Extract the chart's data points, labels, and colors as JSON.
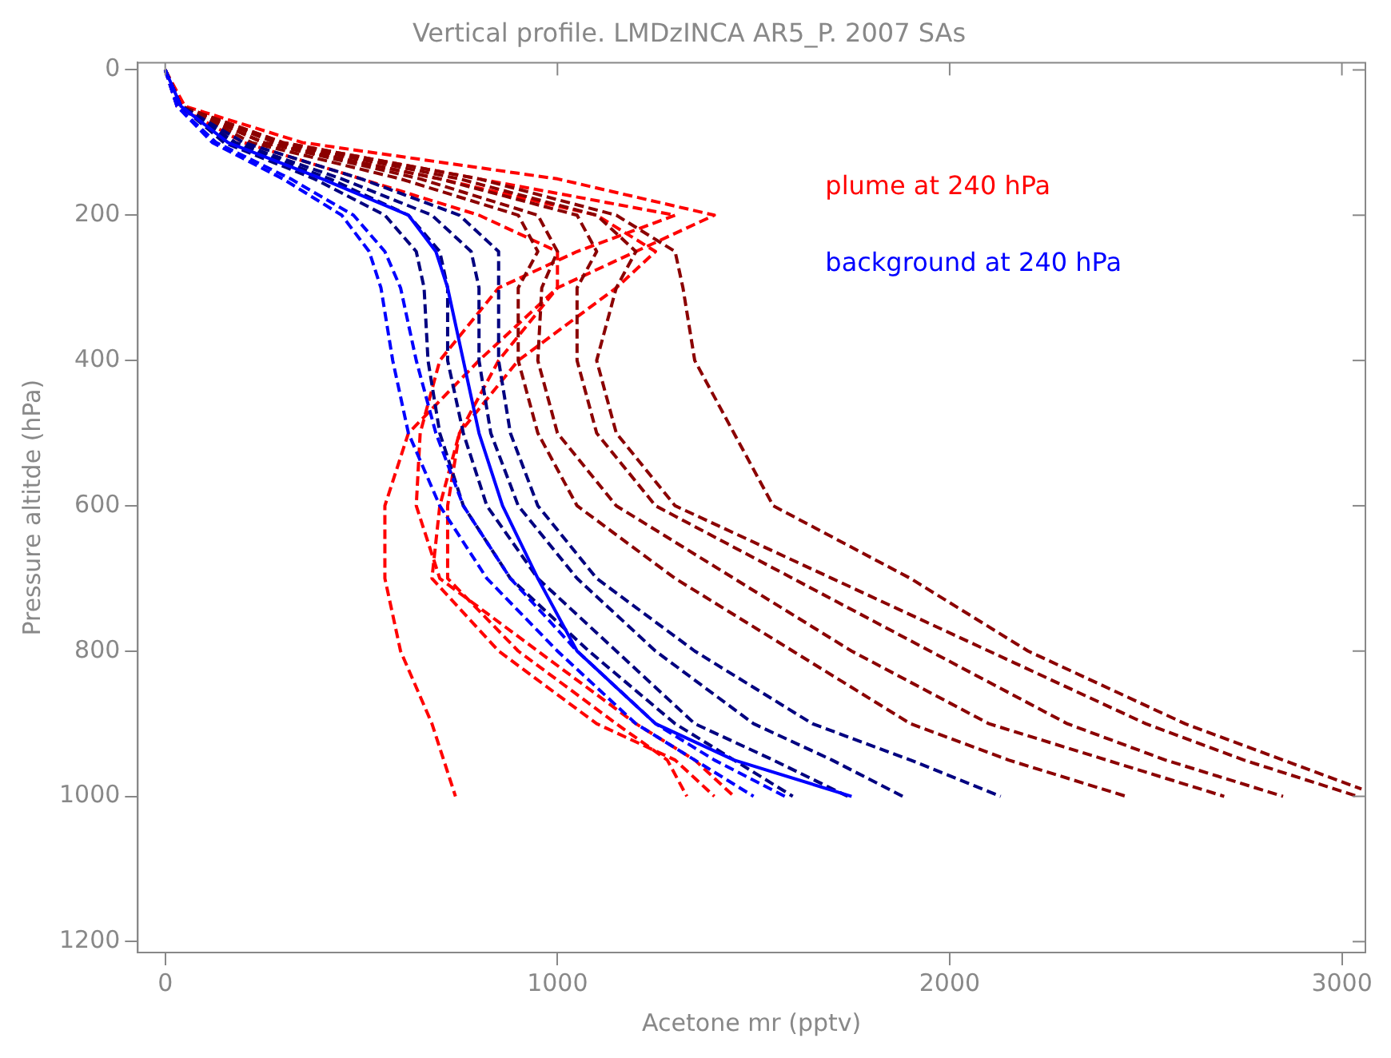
{
  "chart_data": {
    "type": "line",
    "title": "Vertical profile. LMDzINCA AR5_P. 2007 SAs",
    "xlabel": "Acetone mr (pptv)",
    "ylabel": "Pressure altitde (hPa)",
    "xlim": [
      -70,
      3060
    ],
    "xticks": [
      0,
      1000,
      2000,
      3000
    ],
    "ylim": [
      1215,
      -10
    ],
    "yticks": [
      0,
      200,
      400,
      600,
      800,
      1000,
      1200
    ],
    "grid": false,
    "legend": "top right",
    "line_style": "dashed",
    "marker": "none",
    "series": [
      {
        "name": "plume at 240 hPa",
        "color": "#ff0000",
        "x": [
          0,
          30,
          200,
          500,
          800,
          1000,
          1000,
          800,
          620,
          560,
          560,
          600,
          680,
          710,
          740
        ],
        "values": [
          0,
          50,
          100,
          150,
          200,
          250,
          300,
          400,
          500,
          600,
          700,
          800,
          900,
          950,
          1000
        ]
      },
      {
        "color": "#ff0000",
        "x": [
          0,
          40,
          250,
          700,
          1100,
          1250,
          1150,
          900,
          750,
          720,
          720,
          900,
          1150,
          1280,
          1330
        ],
        "values": [
          0,
          50,
          100,
          150,
          200,
          250,
          300,
          400,
          500,
          600,
          700,
          800,
          900,
          950,
          1000
        ]
      },
      {
        "color": "#ff0000",
        "x": [
          0,
          40,
          300,
          800,
          1300,
          1050,
          850,
          700,
          650,
          640,
          700,
          950,
          1200,
          1350,
          1450
        ],
        "values": [
          0,
          50,
          100,
          150,
          200,
          250,
          300,
          400,
          500,
          600,
          700,
          800,
          900,
          950,
          1000
        ]
      },
      {
        "color": "#ff0000",
        "x": [
          0,
          50,
          350,
          1000,
          1400,
          1200,
          1000,
          850,
          750,
          700,
          680,
          850,
          1100,
          1300,
          1400
        ],
        "values": [
          0,
          50,
          100,
          150,
          200,
          250,
          300,
          400,
          500,
          600,
          700,
          800,
          900,
          950,
          1000
        ]
      },
      {
        "color": "#8b0000",
        "x": [
          0,
          40,
          300,
          800,
          1150,
          1300,
          1320,
          1350,
          1450,
          1550,
          1900,
          2200,
          2600,
          2850,
          3050
        ],
        "values": [
          0,
          50,
          100,
          150,
          200,
          250,
          300,
          400,
          500,
          600,
          700,
          800,
          900,
          950,
          990
        ]
      },
      {
        "color": "#8b0000",
        "x": [
          0,
          40,
          280,
          750,
          1100,
          1200,
          1150,
          1100,
          1150,
          1300,
          1700,
          2100,
          2500,
          2750,
          3040
        ],
        "values": [
          0,
          50,
          100,
          150,
          200,
          250,
          300,
          400,
          500,
          600,
          700,
          800,
          900,
          950,
          1000
        ]
      },
      {
        "color": "#8b0000",
        "x": [
          0,
          40,
          250,
          700,
          1050,
          1100,
          1050,
          1050,
          1100,
          1250,
          1600,
          1950,
          2300,
          2550,
          2850
        ],
        "values": [
          0,
          50,
          100,
          150,
          200,
          250,
          300,
          400,
          500,
          600,
          700,
          800,
          900,
          950,
          1000
        ]
      },
      {
        "color": "#8b0000",
        "x": [
          0,
          40,
          250,
          650,
          950,
          1000,
          960,
          950,
          1000,
          1150,
          1450,
          1750,
          2100,
          2400,
          2700
        ],
        "values": [
          0,
          50,
          100,
          150,
          200,
          250,
          300,
          400,
          500,
          600,
          700,
          800,
          900,
          950,
          1000
        ]
      },
      {
        "color": "#8b0000",
        "x": [
          0,
          40,
          220,
          600,
          900,
          950,
          900,
          900,
          950,
          1050,
          1300,
          1600,
          1900,
          2150,
          2450
        ],
        "values": [
          0,
          50,
          100,
          150,
          200,
          250,
          300,
          400,
          500,
          600,
          700,
          800,
          900,
          950,
          1000
        ]
      },
      {
        "color": "#000080",
        "x": [
          0,
          40,
          200,
          500,
          750,
          850,
          850,
          850,
          880,
          950,
          1100,
          1350,
          1650,
          1900,
          2130
        ],
        "values": [
          0,
          50,
          100,
          150,
          200,
          250,
          300,
          400,
          500,
          600,
          700,
          800,
          900,
          950,
          1000
        ]
      },
      {
        "color": "#000080",
        "x": [
          0,
          40,
          180,
          450,
          680,
          780,
          800,
          800,
          830,
          900,
          1050,
          1250,
          1500,
          1700,
          1880
        ],
        "values": [
          0,
          50,
          100,
          150,
          200,
          250,
          300,
          400,
          500,
          600,
          700,
          800,
          900,
          950,
          1000
        ]
      },
      {
        "color": "#000080",
        "x": [
          0,
          40,
          170,
          420,
          620,
          700,
          720,
          720,
          760,
          820,
          950,
          1150,
          1350,
          1550,
          1740
        ],
        "values": [
          0,
          50,
          100,
          150,
          200,
          250,
          300,
          400,
          500,
          600,
          700,
          800,
          900,
          950,
          1000
        ]
      },
      {
        "color": "#000080",
        "x": [
          0,
          40,
          150,
          380,
          560,
          640,
          660,
          670,
          700,
          760,
          880,
          1080,
          1300,
          1450,
          1600
        ],
        "values": [
          0,
          50,
          100,
          150,
          200,
          250,
          300,
          400,
          500,
          600,
          700,
          800,
          900,
          950,
          1000
        ]
      },
      {
        "name": "background at 240 hPa",
        "color": "#0000ff",
        "x": [
          0,
          30,
          120,
          300,
          450,
          520,
          550,
          580,
          620,
          700,
          820,
          1000,
          1200,
          1350,
          1500
        ],
        "values": [
          0,
          50,
          100,
          150,
          200,
          250,
          300,
          400,
          500,
          600,
          700,
          800,
          900,
          950,
          1000
        ]
      },
      {
        "color": "#0000ff",
        "x": [
          0,
          30,
          130,
          320,
          480,
          560,
          600,
          640,
          690,
          760,
          880,
          1050,
          1250,
          1400,
          1580
        ],
        "values": [
          0,
          50,
          100,
          150,
          200,
          250,
          300,
          400,
          500,
          600,
          700,
          800,
          900,
          950,
          1000
        ]
      },
      {
        "color": "#0000ff",
        "line_style": "solid",
        "x": [
          0,
          40,
          160,
          400,
          620,
          690,
          720,
          760,
          800,
          860,
          950,
          1050,
          1250,
          1450,
          1750
        ],
        "values": [
          0,
          50,
          100,
          150,
          200,
          250,
          300,
          400,
          500,
          600,
          700,
          800,
          900,
          950,
          1000
        ]
      }
    ]
  }
}
